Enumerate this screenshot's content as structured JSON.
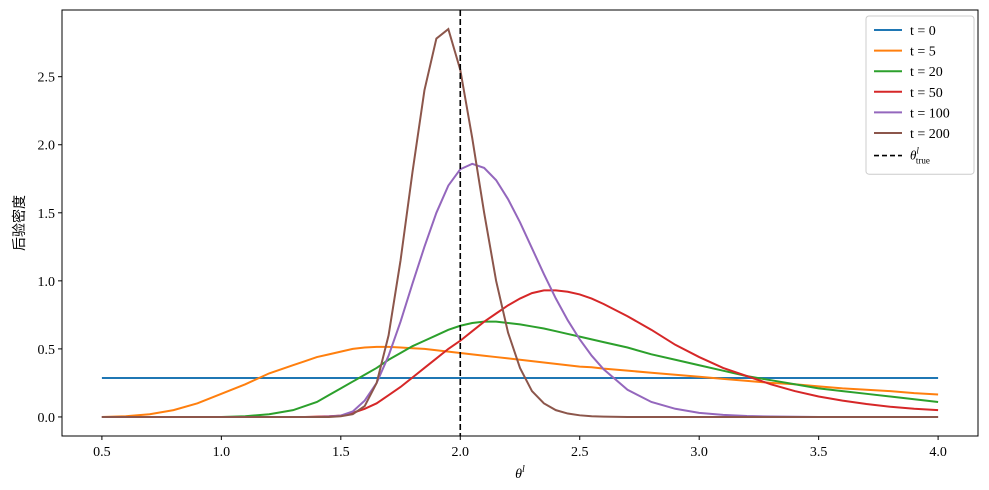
{
  "chart_data": {
    "type": "line",
    "ylabel": "后验密度",
    "xlabel": "θ",
    "xlabel_sup": "l",
    "x": [
      0.5,
      0.6,
      0.7,
      0.8,
      0.9,
      1.0,
      1.1,
      1.2,
      1.3,
      1.35,
      1.4,
      1.45,
      1.5,
      1.55,
      1.6,
      1.65,
      1.7,
      1.75,
      1.8,
      1.85,
      1.9,
      1.95,
      2.0,
      2.05,
      2.1,
      2.15,
      2.2,
      2.25,
      2.3,
      2.35,
      2.4,
      2.45,
      2.5,
      2.55,
      2.6,
      2.7,
      2.8,
      2.9,
      3.0,
      3.1,
      3.2,
      3.3,
      3.4,
      3.5,
      3.6,
      3.7,
      3.8,
      3.9,
      4.0
    ],
    "series": [
      {
        "name": "t = 0",
        "color": "#1f77b4",
        "values": [
          0.2857,
          0.2857,
          0.2857,
          0.2857,
          0.2857,
          0.2857,
          0.2857,
          0.2857,
          0.2857,
          0.2857,
          0.2857,
          0.2857,
          0.2857,
          0.2857,
          0.2857,
          0.2857,
          0.2857,
          0.2857,
          0.2857,
          0.2857,
          0.2857,
          0.2857,
          0.2857,
          0.2857,
          0.2857,
          0.2857,
          0.2857,
          0.2857,
          0.2857,
          0.2857,
          0.2857,
          0.2857,
          0.2857,
          0.2857,
          0.2857,
          0.2857,
          0.2857,
          0.2857,
          0.2857,
          0.2857,
          0.2857,
          0.2857,
          0.2857,
          0.2857,
          0.2857,
          0.2857,
          0.2857,
          0.2857,
          0.2857
        ]
      },
      {
        "name": "t = 5",
        "color": "#ff7f0e",
        "values": [
          0.0,
          0.005,
          0.02,
          0.05,
          0.1,
          0.17,
          0.24,
          0.32,
          0.38,
          0.41,
          0.44,
          0.46,
          0.48,
          0.5,
          0.51,
          0.515,
          0.515,
          0.51,
          0.505,
          0.5,
          0.49,
          0.48,
          0.47,
          0.46,
          0.45,
          0.44,
          0.43,
          0.42,
          0.41,
          0.4,
          0.39,
          0.38,
          0.37,
          0.365,
          0.355,
          0.34,
          0.325,
          0.31,
          0.295,
          0.28,
          0.265,
          0.25,
          0.24,
          0.225,
          0.21,
          0.2,
          0.19,
          0.175,
          0.165
        ]
      },
      {
        "name": "t = 20",
        "color": "#2ca02c",
        "values": [
          0,
          0,
          0,
          0,
          0,
          0,
          0.005,
          0.02,
          0.05,
          0.08,
          0.11,
          0.16,
          0.21,
          0.26,
          0.31,
          0.36,
          0.42,
          0.47,
          0.52,
          0.56,
          0.6,
          0.64,
          0.67,
          0.69,
          0.7,
          0.7,
          0.69,
          0.68,
          0.665,
          0.65,
          0.63,
          0.61,
          0.59,
          0.57,
          0.55,
          0.51,
          0.46,
          0.42,
          0.38,
          0.34,
          0.3,
          0.27,
          0.24,
          0.21,
          0.19,
          0.17,
          0.15,
          0.13,
          0.11
        ]
      },
      {
        "name": "t = 50",
        "color": "#d62728",
        "values": [
          0,
          0,
          0,
          0,
          0,
          0,
          0,
          0,
          0,
          0,
          0.002,
          0.005,
          0.01,
          0.03,
          0.06,
          0.1,
          0.16,
          0.22,
          0.29,
          0.36,
          0.43,
          0.5,
          0.56,
          0.63,
          0.7,
          0.76,
          0.82,
          0.87,
          0.91,
          0.93,
          0.93,
          0.92,
          0.9,
          0.87,
          0.83,
          0.74,
          0.64,
          0.53,
          0.44,
          0.36,
          0.3,
          0.24,
          0.19,
          0.15,
          0.12,
          0.095,
          0.075,
          0.06,
          0.05
        ]
      },
      {
        "name": "t = 100",
        "color": "#9467bd",
        "values": [
          0,
          0,
          0,
          0,
          0,
          0,
          0,
          0,
          0,
          0,
          0,
          0.003,
          0.01,
          0.04,
          0.12,
          0.25,
          0.45,
          0.7,
          0.98,
          1.25,
          1.5,
          1.7,
          1.82,
          1.86,
          1.83,
          1.74,
          1.6,
          1.43,
          1.24,
          1.05,
          0.87,
          0.71,
          0.57,
          0.45,
          0.35,
          0.2,
          0.11,
          0.06,
          0.03,
          0.015,
          0.007,
          0.003,
          0.001,
          0,
          0,
          0,
          0,
          0,
          0
        ]
      },
      {
        "name": "t = 200",
        "color": "#8c564b",
        "values": [
          0,
          0,
          0,
          0,
          0,
          0,
          0,
          0,
          0,
          0,
          0,
          0,
          0.005,
          0.02,
          0.08,
          0.25,
          0.6,
          1.15,
          1.8,
          2.4,
          2.78,
          2.85,
          2.55,
          2.05,
          1.5,
          1.0,
          0.62,
          0.36,
          0.19,
          0.1,
          0.05,
          0.025,
          0.012,
          0.005,
          0.002,
          0,
          0,
          0,
          0,
          0,
          0,
          0,
          0,
          0,
          0,
          0,
          0,
          0,
          0
        ]
      }
    ],
    "vline": {
      "x": 2.0,
      "color": "#000000",
      "dashed": true,
      "name": "θ",
      "name_sup": "l",
      "name_sub": "true"
    },
    "xlim": [
      0.333,
      4.167
    ],
    "ylim": [
      -0.14,
      2.99
    ],
    "xticks": [
      {
        "value": 0.5,
        "label": "0.5"
      },
      {
        "value": 1,
        "label": "1.0"
      },
      {
        "value": 1.5,
        "label": "1.5"
      },
      {
        "value": 2,
        "label": "2.0"
      },
      {
        "value": 2.5,
        "label": "2.5"
      },
      {
        "value": 3,
        "label": "3.0"
      },
      {
        "value": 3.5,
        "label": "3.5"
      },
      {
        "value": 4,
        "label": "4.0"
      }
    ],
    "yticks": [
      {
        "value": 0,
        "label": "0.0"
      },
      {
        "value": 0.5,
        "label": "0.5"
      },
      {
        "value": 1,
        "label": "1.0"
      },
      {
        "value": 1.5,
        "label": "1.5"
      },
      {
        "value": 2,
        "label": "2.0"
      },
      {
        "value": 2.5,
        "label": "2.5"
      }
    ],
    "grid": false,
    "legend": "upper right"
  }
}
